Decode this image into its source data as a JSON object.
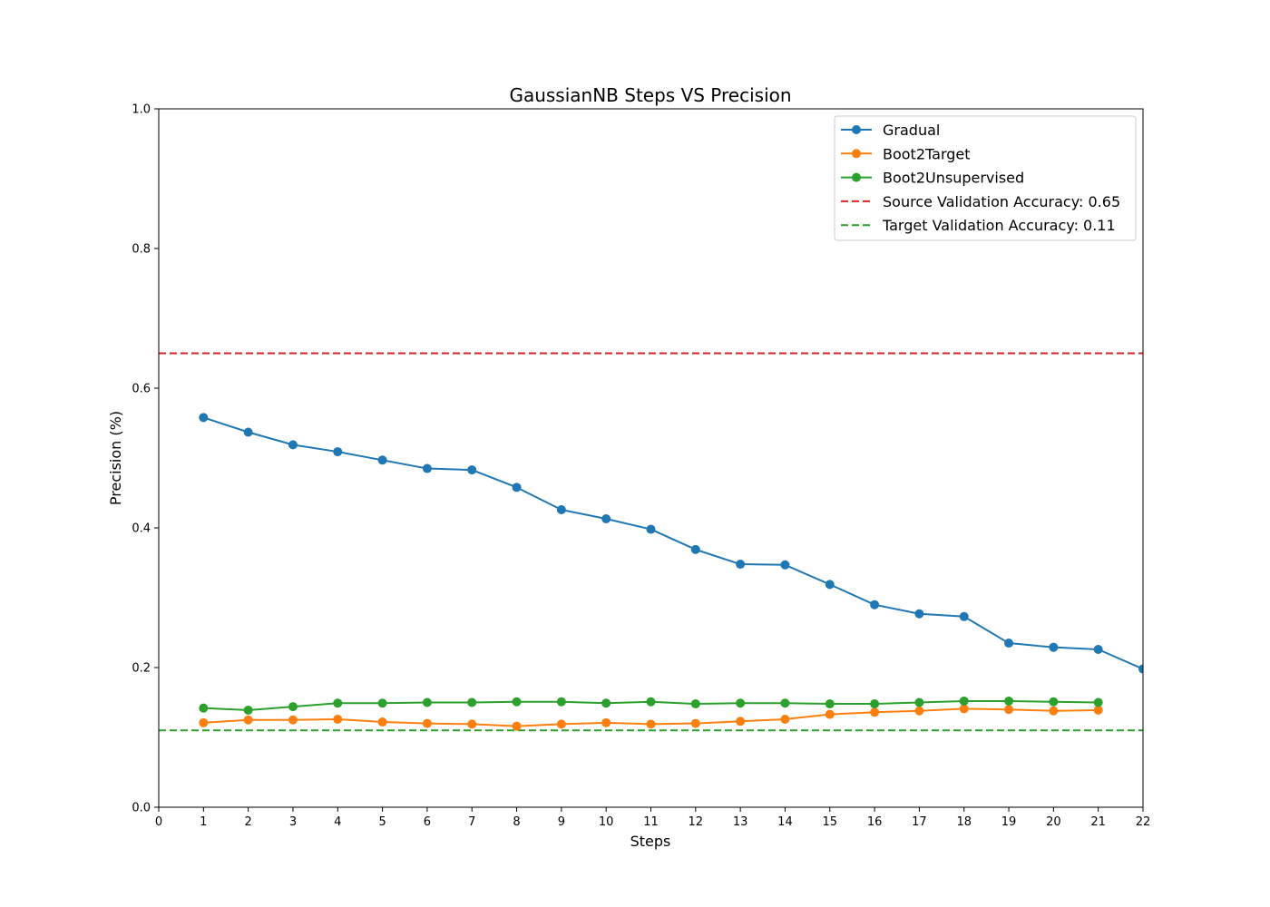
{
  "chart_data": {
    "type": "line",
    "title": "GaussianNB Steps VS Precision",
    "xlabel": "Steps",
    "ylabel": "Precision (%)",
    "xlim": [
      0,
      22
    ],
    "ylim": [
      0,
      1.0
    ],
    "xticks": [
      0,
      1,
      2,
      3,
      4,
      5,
      6,
      7,
      8,
      9,
      10,
      11,
      12,
      13,
      14,
      15,
      16,
      17,
      18,
      19,
      20,
      21,
      22
    ],
    "yticks": [
      0.0,
      0.2,
      0.4,
      0.6,
      0.8,
      1.0
    ],
    "ytick_labels": [
      "0.0",
      "0.2",
      "0.4",
      "0.6",
      "0.8",
      "1.0"
    ],
    "grid": false,
    "legend_position": "top-right",
    "series": [
      {
        "name": "Gradual",
        "color": "#1f77b4",
        "marker": "circle",
        "x": [
          1,
          2,
          3,
          4,
          5,
          6,
          7,
          8,
          9,
          10,
          11,
          12,
          13,
          14,
          15,
          16,
          17,
          18,
          19,
          20,
          21,
          22
        ],
        "values": [
          0.558,
          0.537,
          0.519,
          0.509,
          0.497,
          0.485,
          0.483,
          0.458,
          0.426,
          0.413,
          0.398,
          0.369,
          0.348,
          0.347,
          0.319,
          0.29,
          0.277,
          0.273,
          0.235,
          0.229,
          0.226,
          0.198
        ]
      },
      {
        "name": "Boot2Target",
        "color": "#ff7f0e",
        "marker": "circle",
        "x": [
          1,
          2,
          3,
          4,
          5,
          6,
          7,
          8,
          9,
          10,
          11,
          12,
          13,
          14,
          15,
          16,
          17,
          18,
          19,
          20,
          21
        ],
        "values": [
          0.121,
          0.125,
          0.125,
          0.126,
          0.122,
          0.12,
          0.119,
          0.116,
          0.119,
          0.121,
          0.119,
          0.12,
          0.123,
          0.126,
          0.133,
          0.136,
          0.138,
          0.141,
          0.14,
          0.138,
          0.139
        ]
      },
      {
        "name": "Boot2Unsupervised",
        "color": "#2ca02c",
        "marker": "circle",
        "x": [
          1,
          2,
          3,
          4,
          5,
          6,
          7,
          8,
          9,
          10,
          11,
          12,
          13,
          14,
          15,
          16,
          17,
          18,
          19,
          20,
          21
        ],
        "values": [
          0.142,
          0.139,
          0.144,
          0.149,
          0.149,
          0.15,
          0.15,
          0.151,
          0.151,
          0.149,
          0.151,
          0.148,
          0.149,
          0.149,
          0.148,
          0.148,
          0.15,
          0.152,
          0.152,
          0.151,
          0.15
        ]
      }
    ],
    "reference_lines": [
      {
        "name": "Source Validation Accuracy: 0.65",
        "value": 0.65,
        "color": "#d62728",
        "style": "dashed"
      },
      {
        "name": "Target Validation Accuracy: 0.11",
        "value": 0.11,
        "color": "#2ca02c",
        "style": "dashed"
      }
    ]
  }
}
